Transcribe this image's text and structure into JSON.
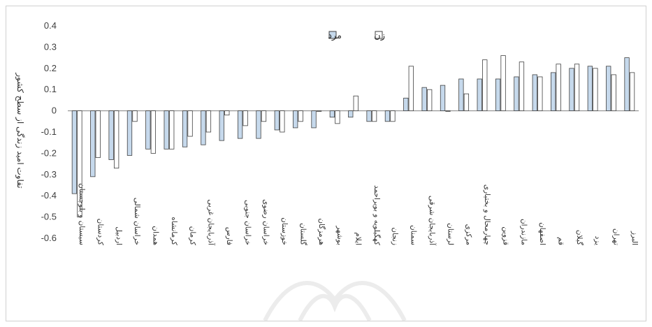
{
  "colors": {
    "men_fill": "#c6d9ec",
    "men_stroke": "#404040",
    "women_fill": "#ffffff",
    "women_stroke": "#404040",
    "axis": "#808080"
  },
  "chart_data": {
    "type": "bar",
    "title": "",
    "xlabel": "",
    "ylabel": "تفاوت امید زندگی از سطح کشور",
    "ylim": [
      -0.6,
      0.4
    ],
    "yticks": [
      0.4,
      0.3,
      0.2,
      0.1,
      0,
      -0.1,
      -0.2,
      -0.3,
      -0.4,
      -0.5,
      -0.6
    ],
    "legend_position": "top-center",
    "categories": [
      "سیستان و بلوچستان",
      "کردستان",
      "اردبیل",
      "خراسان شمالی",
      "همدان",
      "کرمانشاه",
      "کرمان",
      "آذربایجان غربی",
      "فارس",
      "خراسان جنوبی",
      "خراسان رضوی",
      "خوزستان",
      "گلستان",
      "هرمزگان",
      "بوشهر",
      "ایلام",
      "کهگیلویه و بویراحمد",
      "زنجان",
      "سمنان",
      "آذربایجان شرقی",
      "لرستان",
      "مرکزی",
      "چهارمحال و بختیاری",
      "قزوین",
      "مازندران",
      "اصفهان",
      "قم",
      "گیلان",
      "یزد",
      "تهران",
      "البرز"
    ],
    "series": [
      {
        "name": "مرد",
        "values": [
          -0.39,
          -0.31,
          -0.23,
          -0.21,
          -0.18,
          -0.18,
          -0.17,
          -0.16,
          -0.14,
          -0.13,
          -0.13,
          -0.09,
          -0.08,
          -0.08,
          -0.03,
          -0.03,
          -0.05,
          -0.05,
          0.06,
          0.11,
          0.12,
          0.15,
          0.15,
          0.15,
          0.16,
          0.17,
          0.18,
          0.2,
          0.21,
          0.21,
          0.25
        ]
      },
      {
        "name": "زن",
        "values": [
          -0.5,
          -0.22,
          -0.27,
          -0.05,
          -0.2,
          -0.18,
          -0.12,
          -0.1,
          -0.02,
          -0.07,
          -0.05,
          -0.1,
          -0.05,
          0.0,
          -0.06,
          0.07,
          -0.05,
          -0.05,
          0.21,
          0.1,
          0.0,
          0.08,
          0.24,
          0.26,
          0.23,
          0.16,
          0.22,
          0.22,
          0.2,
          0.17,
          0.18
        ]
      }
    ]
  }
}
